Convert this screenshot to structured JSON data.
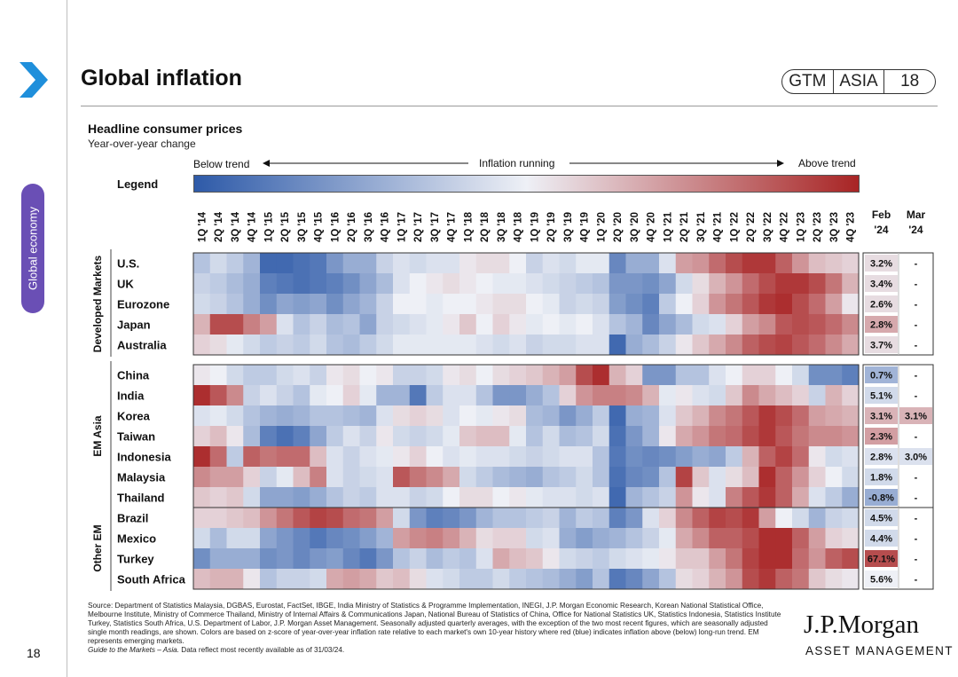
{
  "header": {
    "title": "Global inflation",
    "badge": [
      "GTM",
      "ASIA",
      "18"
    ],
    "section_tab": "Global economy"
  },
  "colors": {
    "accent": "#1f8fdb",
    "tab": "#6a4fb5",
    "low": "#2e5aa8",
    "mid": "#eef0f6",
    "high": "#a82424"
  },
  "chart_data": {
    "type": "heatmap",
    "title": "Headline consumer prices",
    "subtitle": "Year-over-year change",
    "scale_labels": {
      "low": "Below trend",
      "middle": "Inflation running",
      "high": "Above trend"
    },
    "legend_label": "Legend",
    "value_range": [
      -2,
      2
    ],
    "columns": [
      "1Q '14",
      "2Q '14",
      "3Q '14",
      "4Q '14",
      "1Q '15",
      "2Q '15",
      "3Q '15",
      "4Q '15",
      "1Q '16",
      "2Q '16",
      "3Q '16",
      "4Q '16",
      "1Q '17",
      "2Q '17",
      "3Q '17",
      "4Q '17",
      "1Q '18",
      "2Q '18",
      "3Q '18",
      "4Q '18",
      "1Q '19",
      "2Q '19",
      "3Q '19",
      "4Q '19",
      "1Q '20",
      "2Q '20",
      "3Q '20",
      "4Q '20",
      "1Q '21",
      "2Q '21",
      "3Q '21",
      "4Q '21",
      "1Q '22",
      "2Q '22",
      "3Q '22",
      "4Q '22",
      "1Q '23",
      "2Q '23",
      "3Q '23",
      "4Q '23"
    ],
    "latest_headers": [
      [
        "Feb",
        "'24"
      ],
      [
        "Mar",
        "'24"
      ]
    ],
    "groups": [
      {
        "name": "Developed Markets",
        "rows": [
          {
            "name": "U.S.",
            "feb": "3.2%",
            "mar": "-",
            "z": [
              -0.6,
              -0.3,
              -0.5,
              -0.8,
              -1.8,
              -1.8,
              -1.7,
              -1.6,
              -1.2,
              -0.9,
              -0.9,
              -0.4,
              -0.2,
              -0.3,
              -0.2,
              -0.2,
              0.1,
              0.2,
              0.2,
              0.0,
              -0.4,
              -0.2,
              -0.3,
              -0.1,
              -0.1,
              -1.4,
              -0.9,
              -0.9,
              -0.2,
              0.8,
              0.9,
              1.3,
              1.6,
              1.8,
              1.8,
              1.4,
              0.9,
              0.5,
              0.4,
              0.3
            ],
            "zfeb": 0.2
          },
          {
            "name": "UK",
            "feb": "3.4%",
            "mar": "-",
            "z": [
              -0.4,
              -0.5,
              -0.7,
              -0.9,
              -1.5,
              -1.6,
              -1.7,
              -1.6,
              -1.5,
              -1.3,
              -1.0,
              -0.7,
              -0.2,
              0.0,
              0.1,
              0.2,
              0.1,
              0.0,
              -0.1,
              -0.1,
              -0.2,
              -0.3,
              -0.4,
              -0.5,
              -0.6,
              -1.2,
              -1.2,
              -1.3,
              -1.0,
              -0.3,
              0.2,
              0.6,
              0.9,
              1.3,
              1.6,
              1.8,
              1.8,
              1.6,
              1.2,
              0.6
            ],
            "zfeb": 0.2
          },
          {
            "name": "Eurozone",
            "feb": "2.6%",
            "mar": "-",
            "z": [
              -0.3,
              -0.4,
              -0.6,
              -0.9,
              -1.3,
              -1.0,
              -1.1,
              -1.0,
              -1.3,
              -1.0,
              -0.8,
              -0.4,
              0.0,
              0.0,
              -0.1,
              0.0,
              0.0,
              0.1,
              0.2,
              0.2,
              0.0,
              -0.1,
              -0.4,
              -0.3,
              -0.4,
              -1.1,
              -1.3,
              -1.5,
              -0.5,
              0.0,
              0.3,
              0.9,
              1.2,
              1.5,
              1.8,
              1.9,
              1.6,
              1.3,
              0.8,
              0.1
            ],
            "zfeb": 0.2
          },
          {
            "name": "Japan",
            "feb": "2.8%",
            "mar": "-",
            "z": [
              0.6,
              1.6,
              1.6,
              1.1,
              0.8,
              -0.2,
              -0.6,
              -0.4,
              -0.7,
              -0.6,
              -1.0,
              -0.4,
              -0.3,
              -0.2,
              -0.1,
              0.1,
              0.4,
              0.0,
              0.3,
              0.1,
              -0.1,
              0.0,
              -0.1,
              0.0,
              -0.2,
              -0.6,
              -0.8,
              -1.4,
              -1.0,
              -0.7,
              -0.3,
              -0.2,
              0.3,
              0.8,
              1.0,
              1.5,
              1.6,
              1.5,
              1.3,
              1.0
            ],
            "zfeb": 0.7
          },
          {
            "name": "Australia",
            "feb": "3.7%",
            "mar": "-",
            "z": [
              0.3,
              0.2,
              -0.1,
              -0.3,
              -0.5,
              -0.4,
              -0.5,
              -0.3,
              -0.6,
              -0.7,
              -0.5,
              -0.3,
              -0.1,
              -0.1,
              -0.1,
              -0.1,
              -0.1,
              -0.2,
              -0.3,
              -0.2,
              -0.4,
              -0.3,
              -0.3,
              -0.2,
              -0.2,
              -1.8,
              -0.9,
              -0.7,
              -0.4,
              0.1,
              0.4,
              0.7,
              1.0,
              1.4,
              1.6,
              1.7,
              1.5,
              1.3,
              1.0,
              0.7
            ],
            "zfeb": 0.2
          }
        ]
      },
      {
        "name": "EM Asia",
        "rows": [
          {
            "name": "China",
            "feb": "0.7%",
            "mar": "-",
            "z": [
              0.1,
              0.0,
              -0.3,
              -0.5,
              -0.5,
              -0.3,
              -0.2,
              -0.4,
              0.1,
              0.2,
              0.0,
              0.1,
              -0.4,
              -0.4,
              -0.3,
              0.1,
              0.2,
              0.0,
              0.2,
              0.3,
              0.4,
              0.6,
              0.8,
              1.6,
              1.9,
              0.6,
              0.3,
              -1.2,
              -1.2,
              -0.6,
              -0.6,
              -0.2,
              0.0,
              0.3,
              0.3,
              0.0,
              -0.3,
              -1.3,
              -1.3,
              -1.5
            ],
            "zfeb": -0.8
          },
          {
            "name": "India",
            "feb": "5.1%",
            "mar": "-",
            "z": [
              1.9,
              1.5,
              1.0,
              -0.4,
              -0.2,
              -0.4,
              -0.6,
              -0.1,
              0.0,
              0.3,
              -0.1,
              -0.8,
              -0.8,
              -1.6,
              -0.5,
              -0.2,
              -0.2,
              -0.6,
              -1.2,
              -1.2,
              -0.9,
              -0.6,
              0.3,
              0.9,
              1.1,
              1.1,
              1.0,
              0.6,
              -0.1,
              0.1,
              -0.2,
              -0.3,
              0.4,
              1.0,
              0.7,
              0.5,
              0.3,
              -0.4,
              0.6,
              0.3
            ],
            "zfeb": -0.3
          },
          {
            "name": "Korea",
            "feb": "3.1%",
            "mar": "3.1%",
            "z": [
              -0.2,
              -0.1,
              -0.3,
              -0.6,
              -0.8,
              -0.9,
              -0.8,
              -0.6,
              -0.6,
              -0.7,
              -0.8,
              -0.2,
              0.2,
              0.3,
              0.2,
              -0.2,
              0.0,
              -0.1,
              0.1,
              0.2,
              -0.7,
              -0.8,
              -1.2,
              -0.9,
              -0.5,
              -1.8,
              -0.9,
              -0.8,
              -0.2,
              0.4,
              0.6,
              1.0,
              1.2,
              1.5,
              1.8,
              1.6,
              1.3,
              0.8,
              0.7,
              0.6
            ],
            "zfeb": 0.6
          },
          {
            "name": "Taiwan",
            "feb": "2.3%",
            "mar": "-",
            "z": [
              0.3,
              0.5,
              0.1,
              -0.7,
              -1.5,
              -1.7,
              -1.5,
              -1.0,
              -0.5,
              -0.2,
              -0.4,
              0.1,
              -0.3,
              -0.4,
              -0.3,
              -0.1,
              0.4,
              0.5,
              0.5,
              -0.1,
              -0.6,
              -0.3,
              -0.7,
              -0.6,
              -0.3,
              -1.7,
              -1.2,
              -0.8,
              0.1,
              0.7,
              0.9,
              1.2,
              1.3,
              1.6,
              1.8,
              1.5,
              1.2,
              1.0,
              1.0,
              0.9
            ],
            "zfeb": 0.8
          },
          {
            "name": "Indonesia",
            "feb": "2.8%",
            "mar": "3.0%",
            "z": [
              1.9,
              1.3,
              -0.5,
              1.4,
              1.2,
              1.3,
              1.3,
              0.5,
              -0.2,
              -0.4,
              -0.2,
              -0.1,
              0.1,
              0.3,
              0.0,
              -0.2,
              -0.1,
              -0.2,
              -0.2,
              -0.3,
              -0.4,
              -0.3,
              -0.2,
              -0.2,
              -0.6,
              -1.6,
              -1.3,
              -1.4,
              -1.3,
              -1.1,
              -0.9,
              -1.0,
              -0.5,
              0.6,
              1.4,
              1.7,
              1.3,
              0.1,
              -0.3,
              -0.2
            ],
            "zfeb": -0.2
          },
          {
            "name": "Malaysia",
            "feb": "1.8%",
            "mar": "-",
            "z": [
              1.0,
              0.8,
              0.8,
              0.3,
              -0.4,
              -0.1,
              0.5,
              1.1,
              -0.2,
              -0.4,
              -0.3,
              -0.2,
              1.5,
              1.2,
              1.0,
              0.7,
              -0.3,
              -0.5,
              -0.7,
              -0.8,
              -0.9,
              -0.6,
              -0.5,
              -0.3,
              -0.6,
              -1.7,
              -1.4,
              -1.3,
              -0.6,
              1.7,
              0.4,
              -0.2,
              0.2,
              0.5,
              1.9,
              1.4,
              0.9,
              0.3,
              0.0,
              -0.3
            ],
            "zfeb": -0.3
          },
          {
            "name": "Thailand",
            "feb": "-0.8%",
            "mar": "-",
            "z": [
              0.4,
              0.3,
              0.4,
              -0.3,
              -1.0,
              -1.0,
              -1.1,
              -0.9,
              -0.6,
              -0.4,
              -0.5,
              -0.2,
              -0.2,
              -0.4,
              -0.3,
              0.0,
              0.2,
              0.2,
              0.0,
              0.1,
              -0.1,
              -0.2,
              -0.2,
              -0.3,
              -0.2,
              -1.8,
              -0.8,
              -0.6,
              -0.4,
              0.9,
              0.1,
              -0.2,
              1.1,
              1.5,
              1.8,
              1.4,
              0.7,
              -0.2,
              -0.5,
              -0.9
            ],
            "zfeb": -0.9
          }
        ]
      },
      {
        "name": "Other EM",
        "rows": [
          {
            "name": "Brazil",
            "feb": "4.5%",
            "mar": "-",
            "z": [
              0.3,
              0.3,
              0.4,
              0.5,
              0.9,
              1.2,
              1.5,
              1.7,
              1.6,
              1.3,
              1.2,
              0.8,
              -0.3,
              -1.2,
              -1.5,
              -1.4,
              -1.2,
              -0.8,
              -0.6,
              -0.6,
              -0.5,
              -0.4,
              -0.8,
              -0.5,
              -0.6,
              -1.5,
              -1.2,
              -0.2,
              0.3,
              1.0,
              1.4,
              1.7,
              1.6,
              1.8,
              0.8,
              0.0,
              -0.3,
              -0.8,
              -0.4,
              -0.3
            ],
            "zfeb": -0.3
          },
          {
            "name": "Mexico",
            "feb": "4.4%",
            "mar": "-",
            "z": [
              -0.3,
              -0.7,
              -0.3,
              -0.3,
              -1.0,
              -1.2,
              -1.4,
              -1.6,
              -1.4,
              -1.3,
              -1.1,
              -0.8,
              0.8,
              1.0,
              1.1,
              0.9,
              0.6,
              0.2,
              0.3,
              0.3,
              -0.3,
              -0.2,
              -0.9,
              -1.1,
              -0.9,
              -0.8,
              -0.6,
              -0.4,
              -0.1,
              0.7,
              1.0,
              1.4,
              1.4,
              1.6,
              1.9,
              1.9,
              1.4,
              0.8,
              0.3,
              0.2
            ],
            "zfeb": -0.3
          },
          {
            "name": "Turkey",
            "feb": "67.1%",
            "mar": "-",
            "z": [
              -1.3,
              -0.9,
              -0.9,
              -0.9,
              -1.3,
              -1.2,
              -1.4,
              -1.2,
              -1.1,
              -1.4,
              -1.6,
              -1.2,
              -0.6,
              -0.4,
              -0.7,
              -0.5,
              -0.6,
              -0.2,
              0.7,
              0.5,
              0.4,
              0.1,
              -0.3,
              -0.4,
              -0.5,
              -0.3,
              -0.2,
              -0.1,
              0.1,
              0.4,
              0.4,
              0.8,
              1.2,
              1.7,
              1.9,
              1.9,
              1.3,
              0.9,
              1.4,
              1.6
            ],
            "zfeb": 1.6
          },
          {
            "name": "South Africa",
            "feb": "5.6%",
            "mar": "-",
            "z": [
              0.5,
              0.6,
              0.6,
              0.1,
              -0.6,
              -0.4,
              -0.4,
              -0.3,
              0.7,
              0.8,
              0.7,
              0.4,
              0.5,
              0.2,
              -0.2,
              -0.3,
              -0.5,
              -0.5,
              -0.3,
              -0.5,
              -0.6,
              -0.7,
              -0.9,
              -1.1,
              -0.6,
              -1.6,
              -1.4,
              -1.0,
              -0.6,
              0.2,
              0.3,
              0.6,
              0.9,
              1.6,
              1.8,
              1.4,
              1.2,
              0.4,
              0.2,
              0.1
            ],
            "zfeb": 0.0
          }
        ]
      }
    ]
  },
  "footer": {
    "page_number": "18",
    "source": "Source: Department of Statistics Malaysia, DGBAS, Eurostat, FactSet, IBGE, India Ministry of Statistics & Programme Implementation, INEGI, J.P. Morgan Economic Research, Korean National Statistical Office, Melbourne Institute, Ministry of Commerce Thailand, Ministry of Internal Affairs & Communications Japan, National Bureau of Statistics of China, Office for National Statistics UK, Statistics Indonesia, Statistics Institute Turkey, Statistics South Africa, U.S. Department of Labor, J.P. Morgan Asset Management. Seasonally adjusted quarterly averages, with the exception of the two most recent figures, which are seasonally adjusted single month readings, are shown. Colors are based on z-score of year-over-year inflation rate relative to each market's own 10-year history where red (blue) indicates inflation above (below) long-run trend. EM represents emerging markets.",
    "guide_title": "Guide to the Markets – Asia.",
    "guide_rest": "Data reflect most recently available as of 31/03/24.",
    "logo": "J.P.Morgan",
    "logo_sub": "ASSET MANAGEMENT"
  }
}
